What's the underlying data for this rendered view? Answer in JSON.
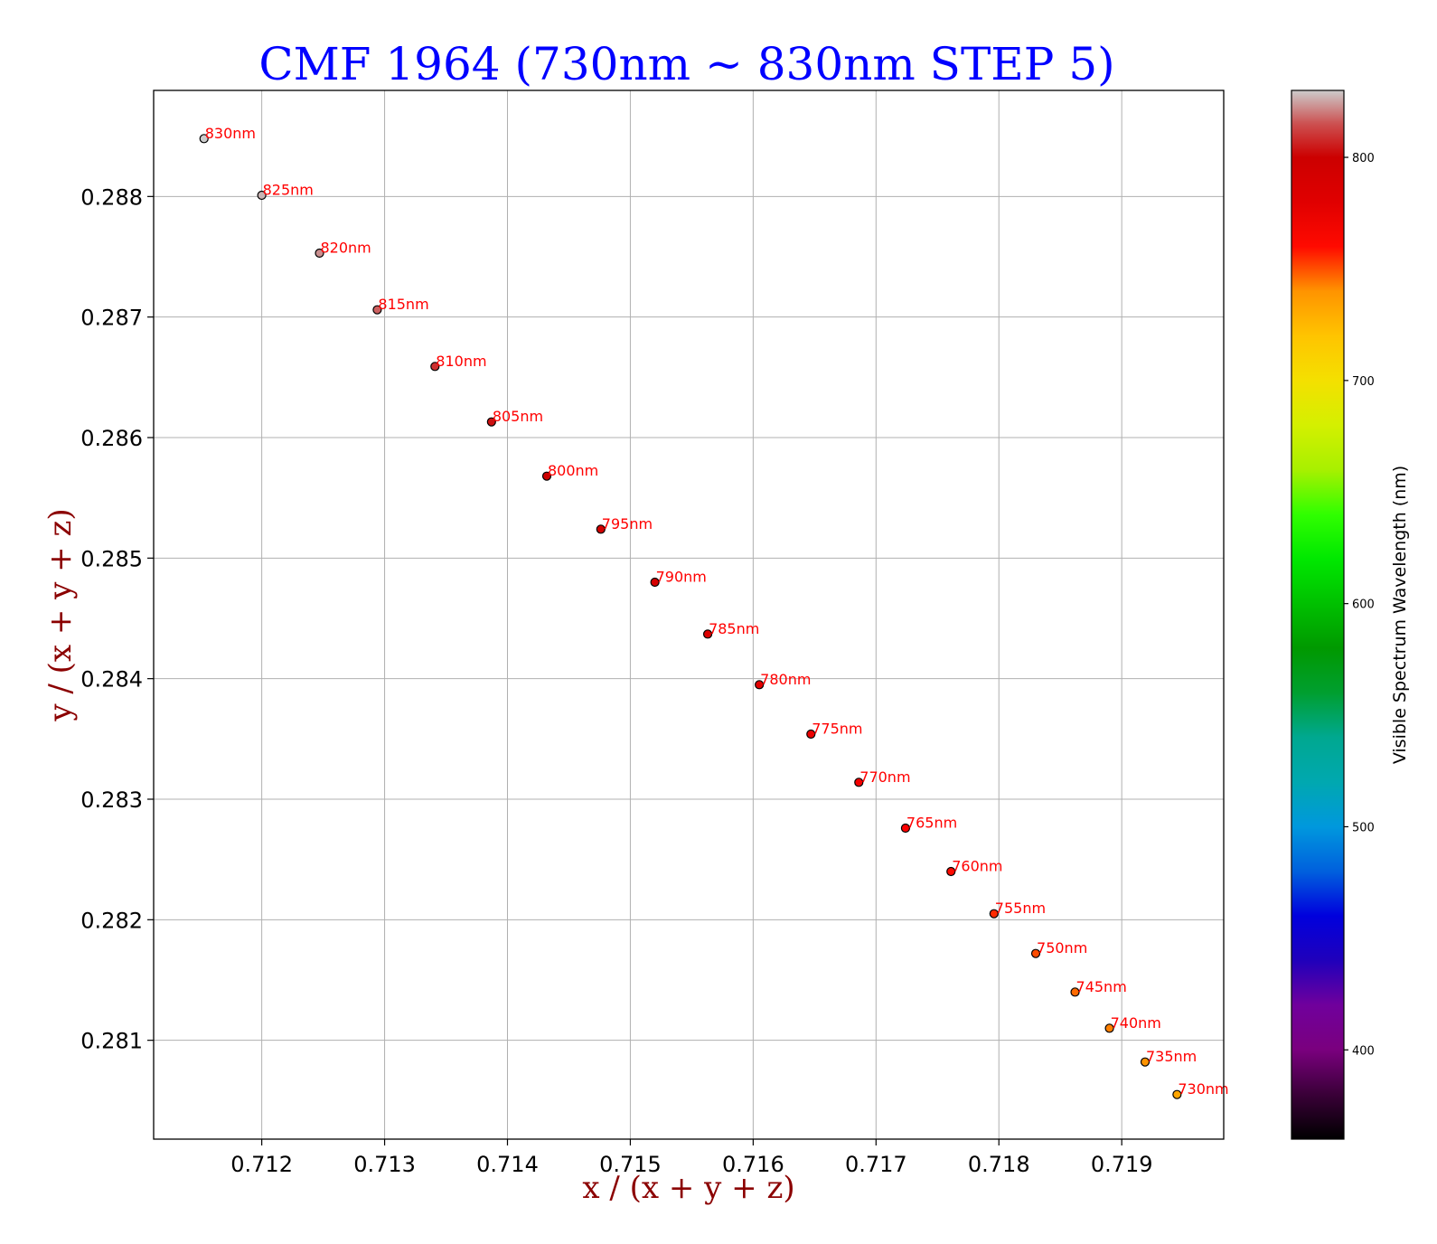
{
  "chart_data": {
    "type": "scatter",
    "title": "CMF 1964 (730nm ~ 830nm STEP 5)",
    "xlabel": "x / (x + y + z)",
    "ylabel": "y / (x + y + z)",
    "xlim": [
      0.71112,
      0.71983
    ],
    "ylim": [
      0.28018,
      0.28888
    ],
    "xticks": [
      "0.712",
      "0.713",
      "0.714",
      "0.715",
      "0.716",
      "0.717",
      "0.718",
      "0.719"
    ],
    "yticks": [
      "0.281",
      "0.282",
      "0.283",
      "0.284",
      "0.285",
      "0.286",
      "0.287",
      "0.288"
    ],
    "grid": true,
    "points": [
      {
        "label": "730nm",
        "x": 0.71945,
        "y": 0.28055,
        "color": "#ffa500"
      },
      {
        "label": "735nm",
        "x": 0.71919,
        "y": 0.28082,
        "color": "#ff9400"
      },
      {
        "label": "740nm",
        "x": 0.7189,
        "y": 0.2811,
        "color": "#ff8000"
      },
      {
        "label": "745nm",
        "x": 0.71862,
        "y": 0.2814,
        "color": "#ff6a00"
      },
      {
        "label": "750nm",
        "x": 0.7183,
        "y": 0.28172,
        "color": "#ff4c00"
      },
      {
        "label": "755nm",
        "x": 0.71796,
        "y": 0.28205,
        "color": "#ff2a00"
      },
      {
        "label": "760nm",
        "x": 0.71761,
        "y": 0.2824,
        "color": "#ff0a00"
      },
      {
        "label": "765nm",
        "x": 0.71724,
        "y": 0.28276,
        "color": "#ff0000"
      },
      {
        "label": "770nm",
        "x": 0.71686,
        "y": 0.28314,
        "color": "#f40000"
      },
      {
        "label": "775nm",
        "x": 0.71647,
        "y": 0.28354,
        "color": "#ec0000"
      },
      {
        "label": "780nm",
        "x": 0.71605,
        "y": 0.28395,
        "color": "#e40000"
      },
      {
        "label": "785nm",
        "x": 0.71563,
        "y": 0.28437,
        "color": "#dc0000"
      },
      {
        "label": "790nm",
        "x": 0.7152,
        "y": 0.2848,
        "color": "#d60000"
      },
      {
        "label": "795nm",
        "x": 0.71476,
        "y": 0.28524,
        "color": "#d20000"
      },
      {
        "label": "800nm",
        "x": 0.71432,
        "y": 0.28568,
        "color": "#cc0000"
      },
      {
        "label": "805nm",
        "x": 0.71387,
        "y": 0.28613,
        "color": "#cc1010"
      },
      {
        "label": "810nm",
        "x": 0.71341,
        "y": 0.28659,
        "color": "#cc3030"
      },
      {
        "label": "815nm",
        "x": 0.71294,
        "y": 0.28706,
        "color": "#cc6060"
      },
      {
        "label": "820nm",
        "x": 0.71247,
        "y": 0.28753,
        "color": "#c98f8f"
      },
      {
        "label": "825nm",
        "x": 0.712,
        "y": 0.28801,
        "color": "#c8b4b4"
      },
      {
        "label": "830nm",
        "x": 0.71153,
        "y": 0.28848,
        "color": "#cccccc"
      }
    ],
    "colorbar": {
      "label": "Visible Spectrum Wavelength (nm)",
      "range": [
        360,
        830
      ],
      "ticks": [
        "400",
        "500",
        "600",
        "700",
        "800"
      ],
      "gradient": [
        {
          "value": 360,
          "color": "#000000"
        },
        {
          "value": 380,
          "color": "#3a0038"
        },
        {
          "value": 400,
          "color": "#7a007e"
        },
        {
          "value": 420,
          "color": "#70009c"
        },
        {
          "value": 440,
          "color": "#2000bb"
        },
        {
          "value": 460,
          "color": "#0000dd"
        },
        {
          "value": 480,
          "color": "#0060dd"
        },
        {
          "value": 500,
          "color": "#0098dd"
        },
        {
          "value": 520,
          "color": "#00a8b0"
        },
        {
          "value": 540,
          "color": "#00a890"
        },
        {
          "value": 560,
          "color": "#009f30"
        },
        {
          "value": 580,
          "color": "#009900"
        },
        {
          "value": 600,
          "color": "#00c000"
        },
        {
          "value": 620,
          "color": "#00e800"
        },
        {
          "value": 640,
          "color": "#30ff00"
        },
        {
          "value": 660,
          "color": "#a8f000"
        },
        {
          "value": 680,
          "color": "#d4f000"
        },
        {
          "value": 700,
          "color": "#f4e000"
        },
        {
          "value": 720,
          "color": "#ffc400"
        },
        {
          "value": 740,
          "color": "#ff9400"
        },
        {
          "value": 760,
          "color": "#ff0a00"
        },
        {
          "value": 780,
          "color": "#e00000"
        },
        {
          "value": 800,
          "color": "#cc0000"
        },
        {
          "value": 815,
          "color": "#cc5050"
        },
        {
          "value": 830,
          "color": "#cccccc"
        }
      ]
    }
  }
}
